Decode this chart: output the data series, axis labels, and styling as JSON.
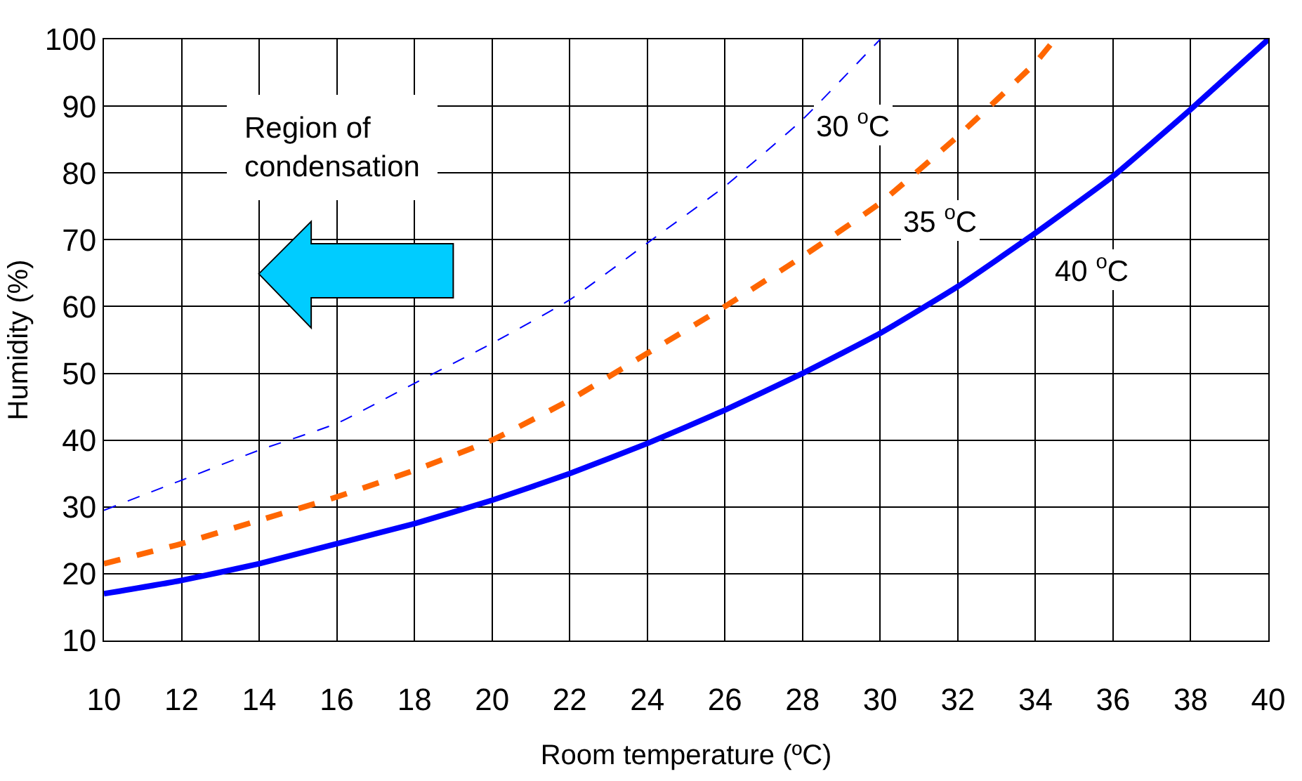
{
  "chart_data": {
    "type": "line",
    "xlabel": "Room temperature (ºC)",
    "ylabel": "Humidity (%)",
    "xlim": [
      10,
      40
    ],
    "xticks": [
      10,
      12,
      14,
      16,
      18,
      20,
      22,
      24,
      26,
      28,
      30,
      32,
      34,
      36,
      38,
      40
    ],
    "ylim": [
      10,
      100
    ],
    "yticks": [
      10,
      20,
      30,
      40,
      50,
      60,
      70,
      80,
      90,
      100
    ],
    "grid": true,
    "legend": false,
    "marker": "none",
    "series": [
      {
        "name": "30 $^{o}$C",
        "color": "#0000ff",
        "line_style": "dashed",
        "x": [
          10,
          12,
          14,
          16,
          18,
          20,
          22,
          24,
          26,
          28,
          30
        ],
        "values": [
          29.5,
          34,
          38.5,
          42.5,
          48.5,
          54.5,
          61,
          69.5,
          78,
          88,
          100
        ]
      },
      {
        "name": "35 $^{o}$C",
        "color": "#ff6600",
        "line_style": "dashed",
        "x": [
          10,
          12,
          14,
          16,
          18,
          20,
          22,
          24,
          26,
          28,
          30,
          32,
          34,
          34.5
        ],
        "values": [
          21.5,
          24.5,
          28,
          31.5,
          35.5,
          40,
          46,
          53,
          60,
          67.5,
          75.5,
          85.5,
          96.5,
          100
        ]
      },
      {
        "name": "40 $^{o}$C",
        "color": "#0000ff",
        "line_style": "solid",
        "x": [
          10,
          12,
          14,
          16,
          18,
          20,
          22,
          24,
          26,
          28,
          30,
          32,
          34,
          36,
          38,
          40
        ],
        "values": [
          17,
          19,
          21.5,
          24.5,
          27.5,
          31,
          35,
          39.5,
          44.5,
          50,
          56,
          63,
          71,
          79.5,
          89.5,
          100
        ]
      }
    ],
    "annotations": [
      "Region of condensation"
    ]
  }
}
